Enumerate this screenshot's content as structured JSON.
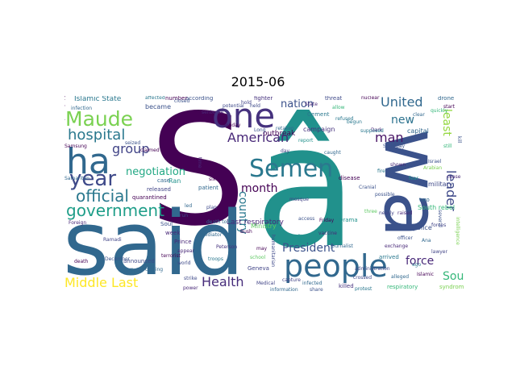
{
  "figure": {
    "title": "2015-06"
  },
  "wordcloud": {
    "words": [
      {
        "text": "S",
        "color": "#440154"
      },
      {
        "text": "â",
        "color": "#21918c"
      },
      {
        "text": "wa",
        "color": "#3b528b"
      },
      {
        "text": "said",
        "color": "#31688e"
      },
      {
        "text": "people",
        "color": "#31688e"
      },
      {
        "text": "one",
        "color": "#46327e"
      },
      {
        "text": "Maude",
        "color": "#7ad151"
      },
      {
        "text": "ha",
        "color": "#31688e"
      },
      {
        "text": "Semen",
        "color": "#2a788e"
      },
      {
        "text": "year",
        "color": "#3e4989"
      },
      {
        "text": "official",
        "color": "#2a788e"
      },
      {
        "text": "government",
        "color": "#1f9e89"
      },
      {
        "text": "Middle Last",
        "color": "#fde725"
      },
      {
        "text": "hospital",
        "color": "#2a788e"
      },
      {
        "text": "group",
        "color": "#414487"
      },
      {
        "text": "negotiation",
        "color": "#22a884"
      },
      {
        "text": "American",
        "color": "#482878"
      },
      {
        "text": "United",
        "color": "#31688e"
      },
      {
        "text": "leader",
        "color": "#3e4989"
      },
      {
        "text": "President",
        "color": "#3b528b"
      },
      {
        "text": "Health",
        "color": "#472d7b"
      },
      {
        "text": "force",
        "color": "#482878"
      },
      {
        "text": "South",
        "color": "#35b779"
      },
      {
        "text": "man",
        "color": "#471365"
      },
      {
        "text": "new",
        "color": "#2c728e"
      },
      {
        "text": "least",
        "color": "#95d840"
      },
      {
        "text": "month",
        "color": "#440154"
      },
      {
        "text": "nation",
        "color": "#3b528b"
      },
      {
        "text": "country",
        "color": "#2a788e"
      },
      {
        "text": "Last respiratory",
        "color": "#482878"
      },
      {
        "text": "Islamic State",
        "color": "#2a788e"
      },
      {
        "text": "outbreak",
        "color": "#440154"
      },
      {
        "text": "military",
        "color": "#3e4989"
      },
      {
        "text": "South rebel",
        "color": "#35b779"
      },
      {
        "text": "became",
        "color": "#3b528b"
      },
      {
        "text": "Ran",
        "color": "#21918c"
      },
      {
        "text": "case",
        "color": "#31688e"
      },
      {
        "text": "released",
        "color": "#414487"
      },
      {
        "text": "quarantined",
        "color": "#440154"
      },
      {
        "text": "announced",
        "color": "#3e4989"
      },
      {
        "text": "Prince",
        "color": "#482878"
      },
      {
        "text": "police",
        "color": "#3b528b"
      },
      {
        "text": "capital",
        "color": "#31688e"
      },
      {
        "text": "campaign",
        "color": "#46327e"
      },
      {
        "text": "Cement",
        "color": "#2a788e"
      },
      {
        "text": "disease",
        "color": "#440154"
      },
      {
        "text": "syndrome",
        "color": "#7ad151"
      },
      {
        "text": "respiratory",
        "color": "#35b779"
      },
      {
        "text": "killed",
        "color": "#46327e"
      },
      {
        "text": "Drama",
        "color": "#21918c"
      },
      {
        "text": "Ministry",
        "color": "#5ec962"
      },
      {
        "text": "Geneva",
        "color": "#414487"
      },
      {
        "text": "Soul",
        "color": "#3b528b"
      },
      {
        "text": "week",
        "color": "#482878"
      },
      {
        "text": "patient",
        "color": "#31688e"
      },
      {
        "text": "according",
        "color": "#3b528b"
      },
      {
        "text": "number",
        "color": "#440154"
      },
      {
        "text": "fighter",
        "color": "#46327e"
      },
      {
        "text": "threat",
        "color": "#3e4989"
      },
      {
        "text": "drone",
        "color": "#31688e"
      },
      {
        "text": "Dark",
        "color": "#482878"
      },
      {
        "text": "supposed",
        "color": "#2a788e"
      },
      {
        "text": "nearly",
        "color": "#414487"
      },
      {
        "text": "possible",
        "color": "#3b528b"
      },
      {
        "text": "two",
        "color": "#31688e"
      },
      {
        "text": "arrived",
        "color": "#2a788e"
      },
      {
        "text": "Islamic",
        "color": "#440154"
      },
      {
        "text": "Medical",
        "color": "#414487"
      },
      {
        "text": "strike",
        "color": "#3e4989"
      },
      {
        "text": "power",
        "color": "#482878"
      },
      {
        "text": "information",
        "color": "#31688e"
      },
      {
        "text": "share",
        "color": "#3b528b"
      },
      {
        "text": "protest",
        "color": "#2a788e"
      },
      {
        "text": "Samsung",
        "color": "#440154"
      },
      {
        "text": "infection",
        "color": "#31688e"
      },
      {
        "text": "Cranial",
        "color": "#3b528b"
      },
      {
        "text": "ally",
        "color": "#21918c"
      },
      {
        "text": "humanitarian",
        "color": "#3e4989"
      },
      {
        "text": "appear",
        "color": "#482878"
      },
      {
        "text": "coming",
        "color": "#31688e"
      },
      {
        "text": "Ramadi",
        "color": "#414487"
      },
      {
        "text": "death",
        "color": "#440154"
      },
      {
        "text": "three",
        "color": "#5ec962"
      },
      {
        "text": "several",
        "color": "#3b528b"
      },
      {
        "text": "cease",
        "color": "#482878"
      },
      {
        "text": "Saturday",
        "color": "#3b528b"
      },
      {
        "text": "clear",
        "color": "#31688e"
      },
      {
        "text": "quickly",
        "color": "#35b779"
      },
      {
        "text": "fire",
        "color": "#2a788e"
      },
      {
        "text": "may",
        "color": "#440154"
      },
      {
        "text": "day",
        "color": "#414487"
      },
      {
        "text": "held",
        "color": "#3e4989"
      },
      {
        "text": "State",
        "color": "#482878"
      },
      {
        "text": "Long",
        "color": "#3b528b"
      },
      {
        "text": "six",
        "color": "#440154"
      },
      {
        "text": "led",
        "color": "#31688e"
      },
      {
        "text": "run",
        "color": "#3e4989"
      },
      {
        "text": "time",
        "color": "#482878"
      },
      {
        "text": "ago",
        "color": "#2a788e"
      },
      {
        "text": "Ana",
        "color": "#31688e"
      },
      {
        "text": "Arabian",
        "color": "#7ad151"
      },
      {
        "text": "Israel",
        "color": "#3b528b"
      },
      {
        "text": "start",
        "color": "#440154"
      },
      {
        "text": "retaken",
        "color": "#31688e"
      },
      {
        "text": "mosque",
        "color": "#414487"
      },
      {
        "text": "administration",
        "color": "#3e4989"
      },
      {
        "text": "raised",
        "color": "#482878"
      },
      {
        "text": "alleged",
        "color": "#31688e"
      },
      {
        "text": "seized",
        "color": "#3b528b"
      },
      {
        "text": "claimed",
        "color": "#440154"
      },
      {
        "text": "Peterson",
        "color": "#46327e"
      },
      {
        "text": "world",
        "color": "#3e4989"
      },
      {
        "text": "mediator",
        "color": "#31688e"
      },
      {
        "text": "report",
        "color": "#21918c"
      },
      {
        "text": "refused",
        "color": "#2a788e"
      },
      {
        "text": "officer",
        "color": "#3b528b"
      },
      {
        "text": "lawyer",
        "color": "#414487"
      },
      {
        "text": "exchange",
        "color": "#482878"
      },
      {
        "text": "school",
        "color": "#5ec962"
      },
      {
        "text": "terrorist",
        "color": "#440154"
      },
      {
        "text": "family",
        "color": "#31688e"
      },
      {
        "text": "December",
        "color": "#3b528b"
      },
      {
        "text": "allow",
        "color": "#35b779"
      },
      {
        "text": "nuclear",
        "color": "#440154"
      },
      {
        "text": "begun",
        "color": "#2a788e"
      },
      {
        "text": "shown",
        "color": "#482878"
      },
      {
        "text": "crossed",
        "color": "#3e4989"
      },
      {
        "text": "infected",
        "color": "#31688e"
      },
      {
        "text": "closed",
        "color": "#3b528b"
      },
      {
        "text": "kindergarten",
        "color": "#440154"
      },
      {
        "text": "Samaritan",
        "color": "#31688e"
      },
      {
        "text": "hold",
        "color": "#414487"
      },
      {
        "text": "Foreign",
        "color": "#482878"
      },
      {
        "text": "potential",
        "color": "#3e4989"
      },
      {
        "text": "affected",
        "color": "#2a788e"
      },
      {
        "text": "Sunday",
        "color": "#440154"
      },
      {
        "text": "caught",
        "color": "#31688e"
      },
      {
        "text": "fear",
        "color": "#21918c"
      },
      {
        "text": "kill",
        "color": "#3b528b"
      },
      {
        "text": "sentence",
        "color": "#482878"
      },
      {
        "text": "still",
        "color": "#35b779"
      },
      {
        "text": "forces",
        "color": "#414487"
      },
      {
        "text": "Bush",
        "color": "#440154"
      },
      {
        "text": "plan",
        "color": "#3e4989"
      },
      {
        "text": "death toll",
        "color": "#31688e"
      },
      {
        "text": "troops",
        "color": "#2a788e"
      },
      {
        "text": "access",
        "color": "#3b528b"
      },
      {
        "text": "intelligence",
        "color": "#7ad151"
      },
      {
        "text": "Friday",
        "color": "#440154"
      },
      {
        "text": "vaccine",
        "color": "#482878"
      },
      {
        "text": "journalist",
        "color": "#31688e"
      },
      {
        "text": "capture",
        "color": "#414487"
      }
    ]
  }
}
